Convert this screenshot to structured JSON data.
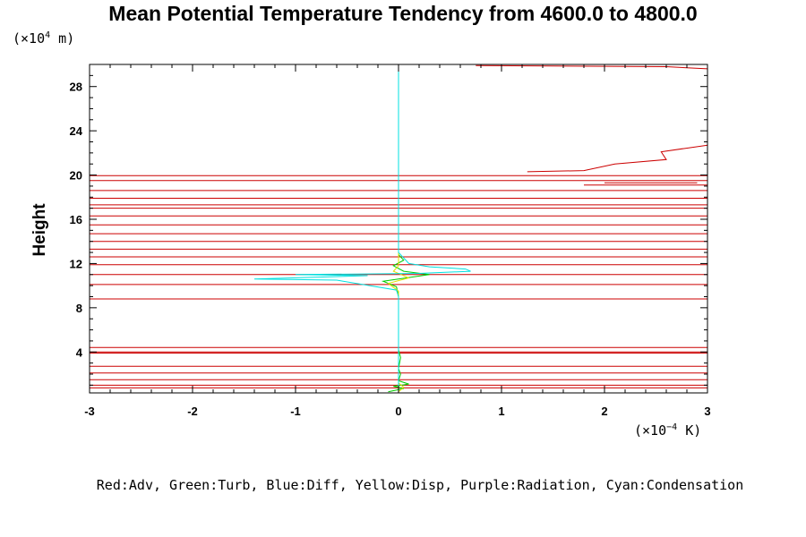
{
  "chart_data": {
    "type": "line",
    "title": "Mean Potential Temperature Tendency from 4600.0 to 4800.0",
    "ylabel": "Height",
    "yunit_prefix": "(×10",
    "yunit_exp": "4",
    "yunit_suffix": " m)",
    "xunit_prefix": "(×10",
    "xunit_exp": "−4",
    "xunit_suffix": " K)",
    "xlim": [
      -3,
      3
    ],
    "ylim": [
      0.3,
      30
    ],
    "xticks": [
      -3,
      -2,
      -1,
      0,
      1,
      2,
      3
    ],
    "yticks": [
      4,
      8,
      12,
      16,
      20,
      24,
      28
    ],
    "legend_text": "Red:Adv, Green:Turb, Blue:Diff, Yellow:Disp, Purple:Radiation, Cyan:Condensation",
    "colors": {
      "adv": "#cc0000",
      "turb": "#00cc00",
      "diff": "#0000ff",
      "disp": "#e0e000",
      "radiation": "#a000a0",
      "condensation": "#00e0e0"
    },
    "series": [
      {
        "name": "Red:Adv",
        "segments": [
          [
            [
              -3,
              0.75
            ],
            [
              3,
              0.75
            ]
          ],
          [
            [
              -3,
              1.0
            ],
            [
              3,
              1.0
            ]
          ],
          [
            [
              -3,
              1.5
            ],
            [
              3,
              1.5
            ]
          ],
          [
            [
              -3,
              2.1
            ],
            [
              3,
              2.1
            ]
          ],
          [
            [
              -3,
              2.7
            ],
            [
              3,
              2.7
            ]
          ],
          [
            [
              -3,
              3.9
            ],
            [
              3,
              3.9
            ]
          ],
          [
            [
              -3,
              4.0
            ],
            [
              3,
              4.0
            ]
          ],
          [
            [
              -3,
              4.4
            ],
            [
              3,
              4.4
            ]
          ],
          [
            [
              -3,
              8.8
            ],
            [
              3,
              8.8
            ]
          ],
          [
            [
              -3,
              10.1
            ],
            [
              3,
              10.1
            ]
          ],
          [
            [
              -3,
              11.0
            ],
            [
              3,
              11.0
            ]
          ],
          [
            [
              -3,
              11.9
            ],
            [
              3,
              11.9
            ]
          ],
          [
            [
              -3,
              12.6
            ],
            [
              3,
              12.6
            ]
          ],
          [
            [
              -3,
              13.3
            ],
            [
              3,
              13.3
            ]
          ],
          [
            [
              -3,
              14.0
            ],
            [
              3,
              14.0
            ]
          ],
          [
            [
              -3,
              14.7
            ],
            [
              3,
              14.7
            ]
          ],
          [
            [
              -3,
              15.5
            ],
            [
              3,
              15.5
            ]
          ],
          [
            [
              -3,
              16.3
            ],
            [
              3,
              16.3
            ]
          ],
          [
            [
              -3,
              17.0
            ],
            [
              3,
              17.0
            ]
          ],
          [
            [
              -3,
              17.3
            ],
            [
              3,
              17.3
            ]
          ],
          [
            [
              -3,
              17.9
            ],
            [
              3,
              17.9
            ]
          ],
          [
            [
              -3,
              18.6
            ],
            [
              3,
              18.6
            ]
          ],
          [
            [
              -3,
              19.5
            ],
            [
              3,
              19.5
            ]
          ],
          [
            [
              -3,
              19.95
            ],
            [
              3,
              19.95
            ]
          ],
          [
            [
              1.8,
              19.1
            ],
            [
              3,
              19.1
            ]
          ],
          [
            [
              2.0,
              19.3
            ],
            [
              2.9,
              19.3
            ]
          ],
          [
            [
              1.25,
              20.3
            ],
            [
              1.8,
              20.4
            ],
            [
              2.1,
              21.0
            ],
            [
              2.6,
              21.4
            ],
            [
              2.55,
              22.1
            ],
            [
              3,
              22.7
            ]
          ],
          [
            [
              0.75,
              29.9
            ],
            [
              2.6,
              29.8
            ],
            [
              3,
              29.6
            ]
          ]
        ]
      },
      {
        "name": "Green:Turb",
        "segments": [
          [
            [
              -0.1,
              0.4
            ],
            [
              0.05,
              0.7
            ],
            [
              -0.05,
              0.9
            ],
            [
              0.1,
              1.1
            ],
            [
              0.0,
              1.4
            ],
            [
              0.02,
              2.0
            ],
            [
              0.0,
              2.5
            ],
            [
              0.02,
              3.5
            ],
            [
              0.0,
              4.2
            ],
            [
              0.0,
              9.0
            ],
            [
              -0.02,
              9.9
            ],
            [
              -0.15,
              10.4
            ],
            [
              0.15,
              10.8
            ],
            [
              0.3,
              11.0
            ],
            [
              0.05,
              11.3
            ],
            [
              -0.05,
              11.8
            ],
            [
              0.05,
              12.3
            ],
            [
              0.0,
              12.8
            ],
            [
              0.0,
              19.9
            ]
          ]
        ]
      },
      {
        "name": "Yellow:Disp",
        "segments": [
          [
            [
              0.0,
              0.4
            ],
            [
              0.05,
              0.8
            ],
            [
              0.0,
              1.2
            ],
            [
              0.0,
              9.5
            ],
            [
              -0.1,
              10.2
            ],
            [
              0.1,
              10.7
            ],
            [
              -0.05,
              11.3
            ],
            [
              0.0,
              11.8
            ],
            [
              0.0,
              20.0
            ]
          ]
        ]
      },
      {
        "name": "Cyan:Condensation",
        "segments": [
          [
            [
              0.0,
              0.3
            ],
            [
              0.0,
              9.0
            ],
            [
              -0.02,
              9.6
            ],
            [
              -0.6,
              10.5
            ],
            [
              -1.4,
              10.6
            ],
            [
              -0.3,
              10.9
            ],
            [
              -1.0,
              11.0
            ],
            [
              0.2,
              11.1
            ],
            [
              0.7,
              11.3
            ],
            [
              0.65,
              11.5
            ],
            [
              0.3,
              11.7
            ],
            [
              0.1,
              12.0
            ],
            [
              0.05,
              12.5
            ],
            [
              0.0,
              13.0
            ],
            [
              0.0,
              30.0
            ]
          ]
        ]
      }
    ]
  }
}
